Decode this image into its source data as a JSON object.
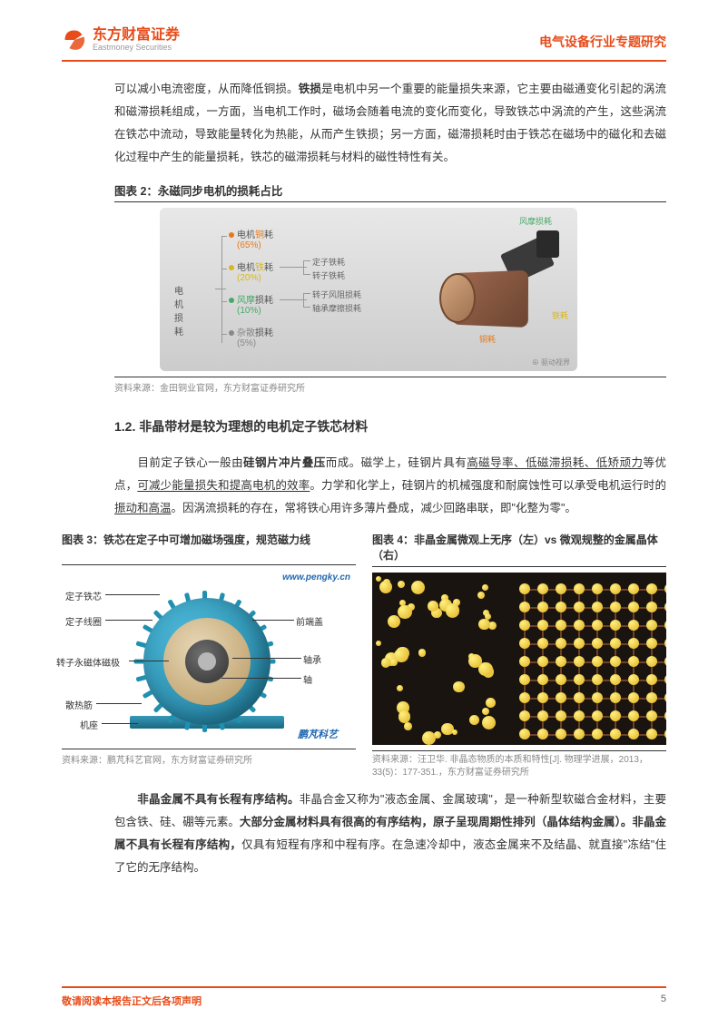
{
  "header": {
    "logo_cn": "东方财富证券",
    "logo_en": "Eastmoney Securities",
    "topic": "电气设备行业专题研究",
    "logo_color": "#e84c1a"
  },
  "para1_before_bold": "可以减小电流密度，从而降低铜损。",
  "para1_bold": "铁损",
  "para1_after": "是电机中另一个重要的能量损失来源，它主要由磁通变化引起的涡流和磁滞损耗组成，一方面，当电机工作时，磁场会随着电流的变化而变化，导致铁芯中涡流的产生，这些涡流在铁芯中流动，导致能量转化为热能，从而产生铁损；另一方面，磁滞损耗时由于铁芯在磁场中的磁化和去磁化过程中产生的能量损耗，铁芯的磁滞损耗与材料的磁性特性有关。",
  "fig2": {
    "title": "图表 2：永磁同步电机的损耗占比",
    "root": "电机损耗",
    "items": [
      {
        "label_pre": "电机",
        "label_key": "铜",
        "label_post": "耗",
        "pct": "(65%)",
        "dot_color": "#e87818",
        "key_color": "#e87818"
      },
      {
        "label_pre": "电机",
        "label_key": "铁",
        "label_post": "耗",
        "pct": "(20%)",
        "dot_color": "#d8b818",
        "key_color": "#d8b818"
      },
      {
        "label_pre": "",
        "label_key": "风摩",
        "label_post": "损耗",
        "pct": "(10%)",
        "dot_color": "#48a868",
        "key_color": "#48a868"
      },
      {
        "label_pre": "",
        "label_key": "杂散",
        "label_post": "损耗",
        "pct": "(5%)",
        "dot_color": "#888888",
        "key_color": "#888888"
      }
    ],
    "subs_iron": [
      "定子铁耗",
      "转子铁耗"
    ],
    "subs_wind": [
      "转子风阻损耗",
      "轴承摩擦损耗"
    ],
    "motor_labels": {
      "top": "风摩损耗",
      "right": "铁耗",
      "bottom": "铜耗"
    },
    "watermark": "⊕ 驱动视界",
    "source": "资料来源：金田铜业官网，东方财富证券研究所"
  },
  "section_1_2": "1.2. 非晶带材是较为理想的电机定子铁芯材料",
  "para2_parts": {
    "p1": "目前定子铁心一般由",
    "b1": "硅钢片冲片叠压",
    "p2": "而成。磁学上，硅钢片具有",
    "u1": "高磁导率、低磁滞损耗、低矫顽力",
    "p3": "等优点，",
    "u2": "可减少能量损失和提高电机的效率",
    "p4": "。力学和化学上，硅钢片的机械强度和耐腐蚀性可以承受电机运行时的",
    "u3": "振动和高温",
    "p5": "。因涡流损耗的存在，常将铁心用许多薄片叠成，减少回路串联，即\"化整为零\"。"
  },
  "fig3": {
    "title": "图表 3：铁芯在定子中可增加磁场强度，规范磁力线",
    "wm": "www.pengky.cn",
    "brand": "鹏芃科艺",
    "labels": {
      "l1": "定子铁芯",
      "l2": "定子线圈",
      "l3": "转子永磁体磁极",
      "l4": "散热筋",
      "l5": "机座",
      "r1": "前端盖",
      "r2": "轴承",
      "r3": "轴"
    },
    "source": "资料来源：鹏芃科艺官网，东方财富证券研究所",
    "colors": {
      "outer": "#1a7898",
      "inner": "#b89860",
      "core": "#303030"
    }
  },
  "fig4": {
    "title": "图表 4：非晶金属微观上无序（左）vs 微观规整的金属晶体（右）",
    "source": "资料来源：汪卫华. 非晶态物质的本质和特性[J]. 物理学进展，2013，33(5)：177-351.，东方财富证券研究所",
    "atom_color": "#e0b020",
    "bond_color": "#704028",
    "bg_color": "#1a1410"
  },
  "para3_parts": {
    "b1": "非晶金属不具有长程有序结构。",
    "p1": "非晶合金又称为\"液态金属、金属玻璃\"，是一种新型软磁合金材料，主要包含铁、硅、硼等元素。",
    "b2": "大部分金属材料具有很高的有序结构，原子呈现周期性排列（晶体结构金属）。非晶金属不具有长程有序结构，",
    "p2": "仅具有短程有序和中程有序。在急速冷却中，液态金属来不及结晶、就直接\"冻结\"住了它的无序结构。"
  },
  "footer": {
    "text": "敬请阅读本报告正文后各项声明",
    "page": "5"
  }
}
